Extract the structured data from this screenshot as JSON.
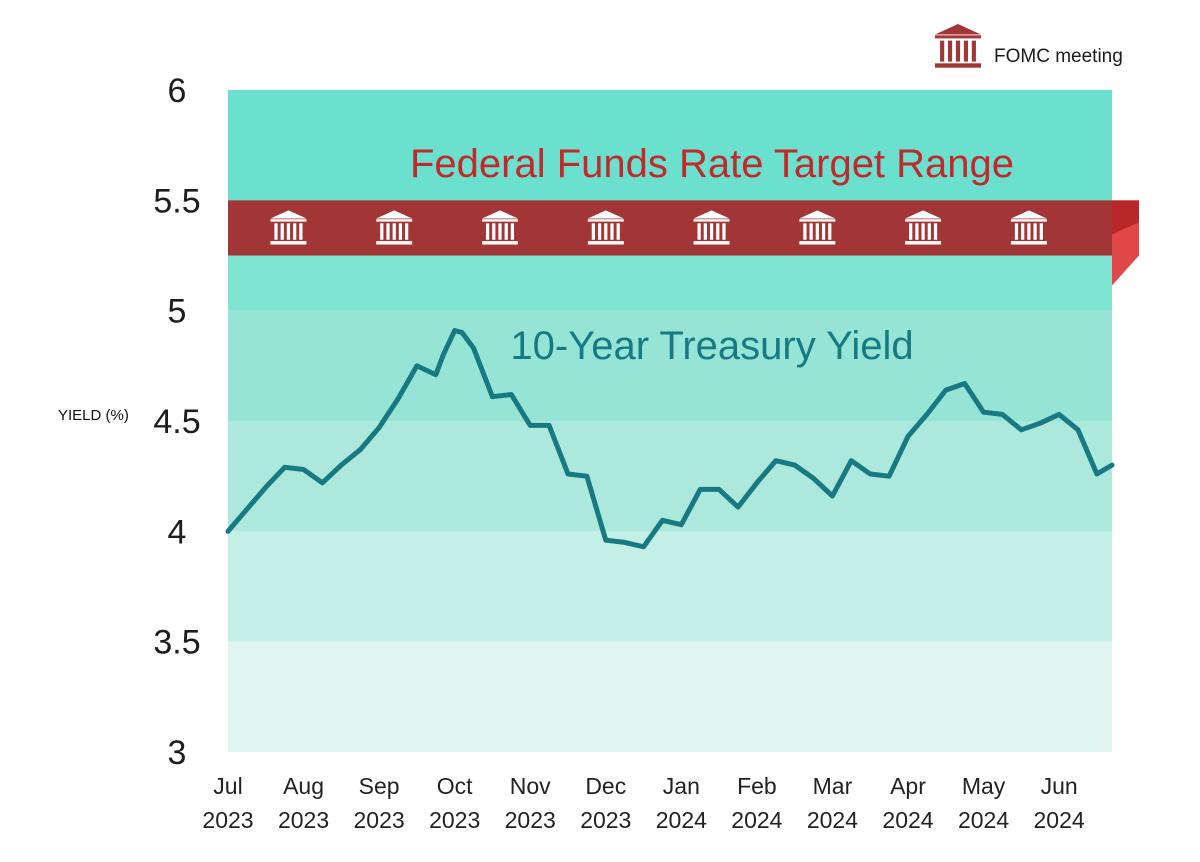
{
  "chart_data": {
    "type": "line",
    "ylabel": "YIELD (%)",
    "ylim": [
      3,
      6
    ],
    "yticks": [
      "3",
      "3.5",
      "4",
      "4.5",
      "5",
      "5.5",
      "6"
    ],
    "xlim": [
      0,
      11.7
    ],
    "x_ticks": [
      {
        "month": "Jul",
        "year": "2023"
      },
      {
        "month": "Aug",
        "year": "2023"
      },
      {
        "month": "Sep",
        "year": "2023"
      },
      {
        "month": "Oct",
        "year": "2023"
      },
      {
        "month": "Nov",
        "year": "2023"
      },
      {
        "month": "Dec",
        "year": "2023"
      },
      {
        "month": "Jan",
        "year": "2024"
      },
      {
        "month": "Feb",
        "year": "2024"
      },
      {
        "month": "Mar",
        "year": "2024"
      },
      {
        "month": "Apr",
        "year": "2024"
      },
      {
        "month": "May",
        "year": "2024"
      },
      {
        "month": "Jun",
        "year": "2024"
      }
    ],
    "series": [
      {
        "name": "10-Year Treasury Yield",
        "color": "#177a82",
        "x": [
          0,
          0.25,
          0.5,
          0.75,
          1.0,
          1.25,
          1.5,
          1.75,
          2.0,
          2.25,
          2.5,
          2.75,
          2.85,
          3.0,
          3.1,
          3.25,
          3.5,
          3.75,
          4.0,
          4.25,
          4.5,
          4.75,
          5.0,
          5.25,
          5.5,
          5.75,
          6.0,
          6.25,
          6.5,
          6.75,
          7.0,
          7.25,
          7.5,
          7.75,
          8.0,
          8.25,
          8.5,
          8.75,
          9.0,
          9.25,
          9.5,
          9.75,
          10.0,
          10.25,
          10.5,
          10.75,
          11.0,
          11.25,
          11.5,
          11.7
        ],
        "values": [
          4.0,
          4.1,
          4.2,
          4.29,
          4.28,
          4.22,
          4.3,
          4.37,
          4.47,
          4.6,
          4.75,
          4.71,
          4.8,
          4.91,
          4.9,
          4.83,
          4.61,
          4.62,
          4.48,
          4.48,
          4.26,
          4.25,
          3.96,
          3.95,
          3.93,
          4.05,
          4.03,
          4.19,
          4.19,
          4.11,
          4.22,
          4.32,
          4.3,
          4.24,
          4.16,
          4.32,
          4.26,
          4.25,
          4.43,
          4.53,
          4.64,
          4.67,
          4.54,
          4.53,
          4.46,
          4.49,
          4.53,
          4.46,
          4.26,
          4.3
        ]
      }
    ],
    "band": {
      "name": "Federal Funds Rate Target Range",
      "low": 5.25,
      "high": 5.5,
      "color": "#a23636"
    },
    "fomc_meetings": [
      0.8,
      2.2,
      3.6,
      5.0,
      6.4,
      7.8,
      9.2,
      10.6
    ],
    "legend": {
      "label": "FOMC meeting",
      "position": "top-right"
    },
    "band_colors": [
      "#e0f5ef",
      "#c3efe6",
      "#ace8dc",
      "#95e4d6",
      "#7fe3d1",
      "#6ce0cf"
    ]
  }
}
